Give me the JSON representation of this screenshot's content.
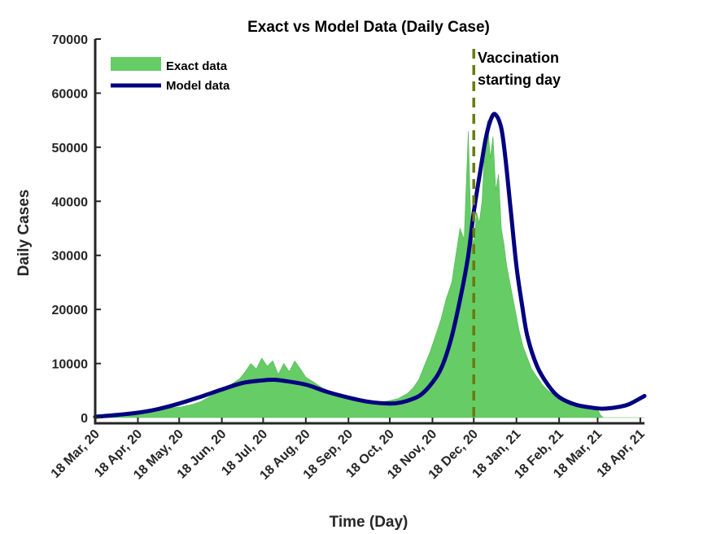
{
  "chart_data": {
    "type": "area",
    "title": "Exact vs Model Data (Daily Case)",
    "xlabel": "Time (Day)",
    "ylabel": "Daily Cases",
    "xlim": [
      "2020-03-18",
      "2021-04-21"
    ],
    "ylim": [
      0,
      70000
    ],
    "yticks": [
      0,
      10000,
      20000,
      30000,
      40000,
      50000,
      60000,
      70000
    ],
    "yticklabels": [
      "0",
      "10000",
      "20000",
      "30000",
      "40000",
      "50000",
      "60000",
      "70000"
    ],
    "xticks": [
      "2020-03-18",
      "2020-04-18",
      "2020-05-18",
      "2020-06-18",
      "2020-07-18",
      "2020-08-18",
      "2020-09-18",
      "2020-10-18",
      "2020-11-18",
      "2020-12-18",
      "2021-01-18",
      "2021-02-18",
      "2021-03-18",
      "2021-04-18"
    ],
    "xticklabels": [
      "18 Mar, 20",
      "18 Apr, 20",
      "18 May, 20",
      "18 Jun, 20",
      "18 Jul, 20",
      "18 Aug, 20",
      "18 Sep, 20",
      "18 Oct, 20",
      "18 Nov, 20",
      "18 Dec, 20",
      "18 Jan, 21",
      "18 Feb, 21",
      "18 Mar, 21",
      "18 Apr, 21"
    ],
    "grid": false,
    "legend_position": "top-left",
    "series": [
      {
        "name": "Exact data",
        "type": "area",
        "color": "#66cc66",
        "x": [
          "2020-03-18",
          "2020-03-25",
          "2020-04-01",
          "2020-04-08",
          "2020-04-15",
          "2020-04-22",
          "2020-04-29",
          "2020-05-06",
          "2020-05-13",
          "2020-05-20",
          "2020-05-27",
          "2020-06-03",
          "2020-06-10",
          "2020-06-17",
          "2020-06-24",
          "2020-07-01",
          "2020-07-05",
          "2020-07-09",
          "2020-07-13",
          "2020-07-17",
          "2020-07-21",
          "2020-07-25",
          "2020-07-29",
          "2020-08-02",
          "2020-08-06",
          "2020-08-10",
          "2020-08-14",
          "2020-08-18",
          "2020-08-24",
          "2020-08-30",
          "2020-09-05",
          "2020-09-12",
          "2020-09-19",
          "2020-09-26",
          "2020-10-03",
          "2020-10-10",
          "2020-10-17",
          "2020-10-24",
          "2020-10-31",
          "2020-11-04",
          "2020-11-08",
          "2020-11-12",
          "2020-11-16",
          "2020-11-20",
          "2020-11-24",
          "2020-11-28",
          "2020-12-02",
          "2020-12-05",
          "2020-12-08",
          "2020-12-11",
          "2020-12-14",
          "2020-12-16",
          "2020-12-18",
          "2020-12-20",
          "2020-12-22",
          "2020-12-24",
          "2020-12-26",
          "2020-12-28",
          "2020-12-30",
          "2021-01-01",
          "2021-01-03",
          "2021-01-05",
          "2021-01-07",
          "2021-01-09",
          "2021-01-11",
          "2021-01-14",
          "2021-01-17",
          "2021-01-20",
          "2021-01-23",
          "2021-01-26",
          "2021-01-29",
          "2021-02-02",
          "2021-02-06",
          "2021-02-10",
          "2021-02-14",
          "2021-02-18",
          "2021-02-22",
          "2021-02-26",
          "2021-03-02",
          "2021-03-06",
          "2021-03-10",
          "2021-03-14",
          "2021-03-18",
          "2021-03-20",
          "2021-03-22",
          "2021-04-21"
        ],
        "values": [
          0,
          500,
          800,
          900,
          1000,
          1100,
          1300,
          1600,
          1800,
          2000,
          2400,
          3000,
          4000,
          4800,
          6000,
          7200,
          8500,
          10000,
          9000,
          11000,
          9500,
          10500,
          8000,
          10000,
          8500,
          10500,
          9000,
          7500,
          6500,
          5500,
          4800,
          4200,
          3500,
          3200,
          3000,
          2800,
          3100,
          3500,
          4500,
          5500,
          7000,
          9500,
          12000,
          15000,
          18000,
          22000,
          25000,
          30000,
          35000,
          33000,
          53000,
          35000,
          32000,
          38000,
          36000,
          40000,
          50000,
          55000,
          48000,
          52000,
          42000,
          45000,
          35000,
          32000,
          28000,
          24000,
          20000,
          16000,
          13000,
          11000,
          9000,
          7500,
          6000,
          5000,
          4200,
          3500,
          3000,
          2800,
          2500,
          2300,
          2200,
          2000,
          1500,
          500,
          0,
          0
        ]
      },
      {
        "name": "Model data",
        "type": "line",
        "color": "#000080",
        "x": [
          "2020-03-18",
          "2020-04-03",
          "2020-04-18",
          "2020-05-03",
          "2020-05-18",
          "2020-06-02",
          "2020-06-18",
          "2020-07-03",
          "2020-07-18",
          "2020-07-26",
          "2020-08-02",
          "2020-08-18",
          "2020-09-02",
          "2020-09-18",
          "2020-10-03",
          "2020-10-18",
          "2020-10-26",
          "2020-11-03",
          "2020-11-10",
          "2020-11-18",
          "2020-11-25",
          "2020-12-02",
          "2020-12-09",
          "2020-12-14",
          "2020-12-18",
          "2020-12-23",
          "2020-12-27",
          "2020-12-31",
          "2021-01-03",
          "2021-01-07",
          "2021-01-10",
          "2021-01-14",
          "2021-01-18",
          "2021-01-22",
          "2021-01-26",
          "2021-02-02",
          "2021-02-10",
          "2021-02-18",
          "2021-03-02",
          "2021-03-18",
          "2021-03-25",
          "2021-04-03",
          "2021-04-10",
          "2021-04-21"
        ],
        "values": [
          150,
          500,
          900,
          1600,
          2600,
          3800,
          5200,
          6400,
          6900,
          7000,
          6800,
          6100,
          4800,
          3700,
          2900,
          2600,
          2800,
          3400,
          4300,
          6500,
          9500,
          15000,
          23000,
          30000,
          38000,
          46000,
          52000,
          55500,
          56000,
          53500,
          48000,
          38000,
          28000,
          21000,
          15000,
          9500,
          6000,
          3800,
          2400,
          1700,
          1700,
          2000,
          2500,
          4000
        ]
      }
    ],
    "annotations": [
      {
        "type": "vline",
        "x": "2020-12-18",
        "color": "#6b7a10",
        "style": "dashed",
        "label": "Vaccination starting day"
      }
    ]
  },
  "legend": {
    "exact_label": "Exact data",
    "model_label": "Model data"
  },
  "annotation_text": {
    "line1": "Vaccination",
    "line2": "starting day"
  }
}
